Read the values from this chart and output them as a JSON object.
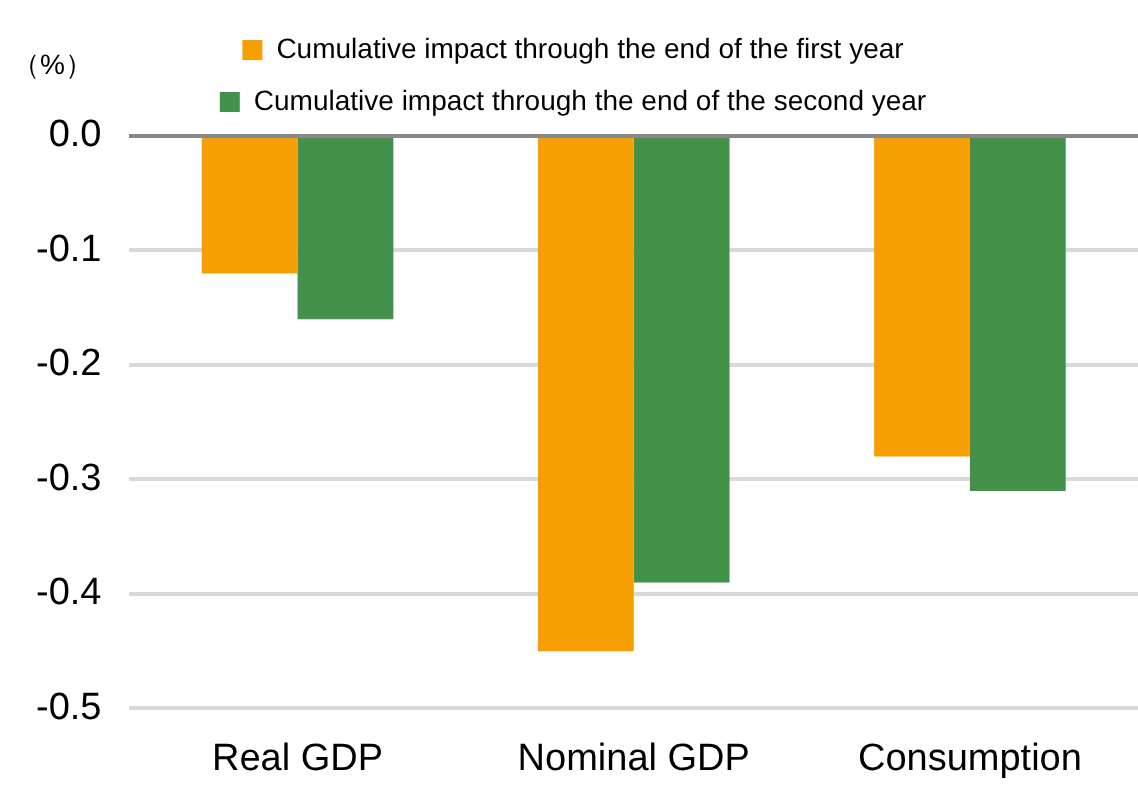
{
  "chart_data": {
    "type": "bar",
    "ylabel": "（%）",
    "categories": [
      "Real GDP",
      "Nominal GDP",
      "Consumption"
    ],
    "series": [
      {
        "name": "Cumulative impact through the end of the first year",
        "color": "#f5a000",
        "values": [
          -0.12,
          -0.45,
          -0.28
        ]
      },
      {
        "name": "Cumulative impact through the end of the second year",
        "color": "#43914a",
        "values": [
          -0.16,
          -0.39,
          -0.31
        ]
      }
    ],
    "ylim": [
      -0.5,
      0
    ],
    "yticks": [
      {
        "value": 0,
        "label": "0.0"
      },
      {
        "value": -0.1,
        "label": "-0.1"
      },
      {
        "value": -0.2,
        "label": "-0.2"
      },
      {
        "value": -0.3,
        "label": "-0.3"
      },
      {
        "value": -0.4,
        "label": "-0.4"
      },
      {
        "value": -0.5,
        "label": "-0.5"
      }
    ],
    "grid": "y",
    "legend": "top"
  }
}
